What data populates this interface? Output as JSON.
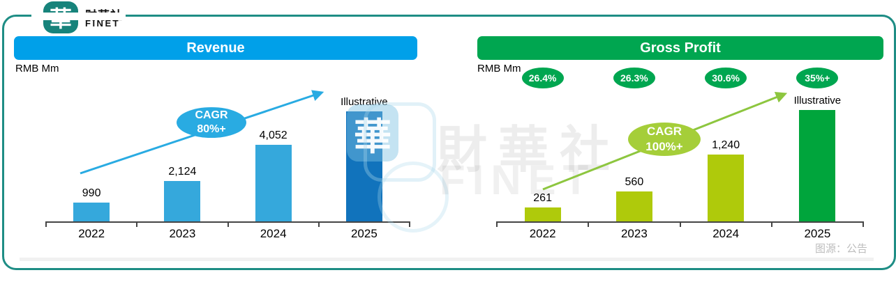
{
  "brand": {
    "logo_glyph": "華",
    "name_cn": "财華社",
    "name_en": "FINET"
  },
  "watermark": {
    "glyph": "華",
    "text_cn": "財華社",
    "text_en": "FINET"
  },
  "source_note": "图源：公告",
  "chart_data": [
    {
      "type": "bar",
      "title": "Revenue",
      "unit_label": "RMB Mm",
      "categories": [
        "2022",
        "2023",
        "2024",
        "2025"
      ],
      "values": [
        990,
        2124,
        4052,
        null
      ],
      "value_labels": [
        "990",
        "2,124",
        "4,052",
        "Illustrative"
      ],
      "final_bar_note": "Illustrative",
      "annotation": {
        "line1": "CAGR",
        "line2": "80%+"
      },
      "ylim": [
        0,
        5800
      ],
      "grid": false,
      "colors": {
        "header": "#00A0E9",
        "bar": "#35A8DC",
        "final_bar": "#1173BC",
        "accent": "#29ABE2",
        "annotation_fill": "#29ABE2"
      }
    },
    {
      "type": "bar",
      "title": "Gross Profit",
      "unit_label": "RMB Mm",
      "categories": [
        "2022",
        "2023",
        "2024",
        "2025"
      ],
      "values": [
        261,
        560,
        1240,
        null
      ],
      "value_labels": [
        "261",
        "560",
        "1,240",
        "Illustrative"
      ],
      "final_bar_note": "Illustrative",
      "margin_labels": [
        "26.4%",
        "26.3%",
        "30.6%",
        "35%+"
      ],
      "annotation": {
        "line1": "CAGR",
        "line2": "100%+"
      },
      "ylim": [
        0,
        2060
      ],
      "grid": false,
      "colors": {
        "header": "#00A650",
        "bar": "#AFCA0B",
        "final_bar": "#00A53C",
        "accent": "#8DC63F",
        "annotation_fill": "#A5CE39",
        "oval": "#00A650"
      }
    }
  ]
}
